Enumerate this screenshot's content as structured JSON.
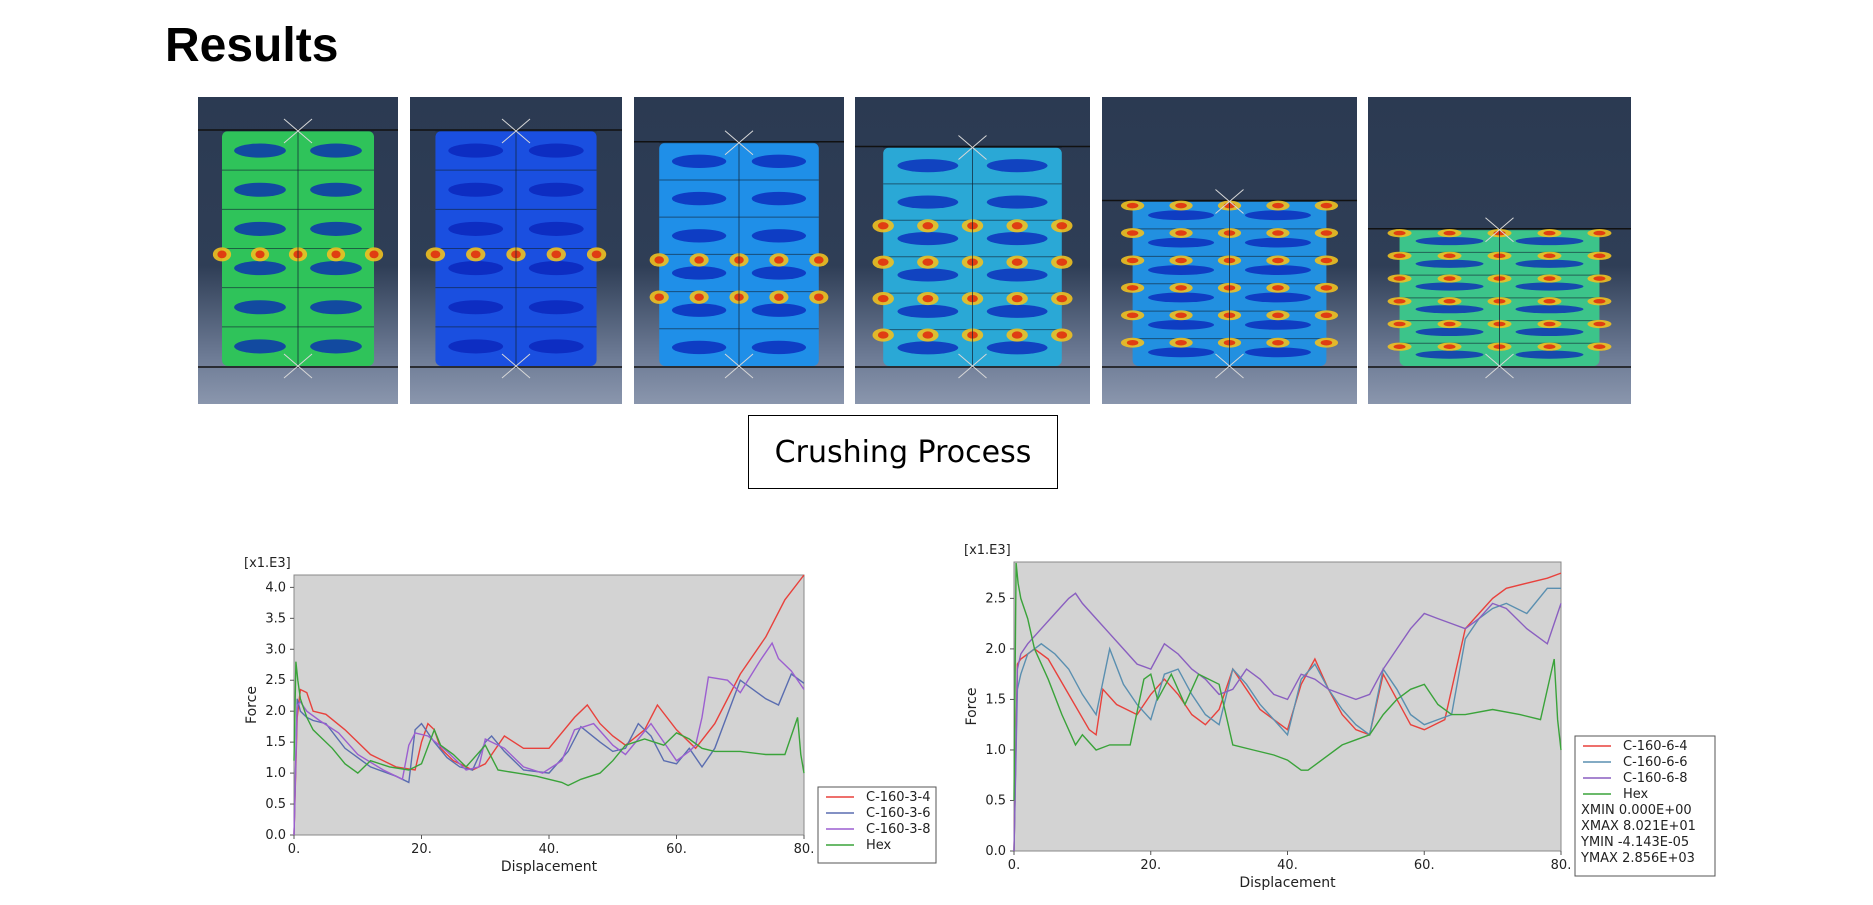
{
  "title": "Results",
  "caption": "Crushing Process",
  "fea_images": [
    {
      "stage": 1,
      "compression": 0.0,
      "band_rows": [
        3
      ]
    },
    {
      "stage": 2,
      "compression": 0.0,
      "band_rows": [
        3
      ]
    },
    {
      "stage": 3,
      "compression": 0.05,
      "band_rows": [
        3,
        4
      ]
    },
    {
      "stage": 4,
      "compression": 0.07,
      "band_rows": [
        2,
        3,
        4,
        5
      ]
    },
    {
      "stage": 5,
      "compression": 0.3,
      "band_rows": [
        0,
        1,
        2,
        3,
        4,
        5
      ]
    },
    {
      "stage": 6,
      "compression": 0.42,
      "band_rows": [
        0,
        1,
        2,
        3,
        4,
        5
      ]
    }
  ],
  "chart_data": [
    {
      "type": "line",
      "xlabel": "Displacement",
      "ylabel": "Force",
      "yscale_label": "[x1.E3]",
      "xlim": [
        0,
        80
      ],
      "ylim": [
        0,
        4.2
      ],
      "xticks": [
        "0.",
        "20.",
        "40.",
        "60.",
        "80."
      ],
      "yticks": [
        "0.0",
        "0.5",
        "1.0",
        "1.5",
        "2.0",
        "2.5",
        "3.0",
        "3.5",
        "4.0"
      ],
      "grid": false,
      "legend_position": "bottom-right-outside",
      "legend": [
        "C-160-3-4",
        "C-160-3-6",
        "C-160-3-8",
        "Hex"
      ],
      "colors": {
        "C-160-3-4": "#e8413c",
        "C-160-3-6": "#5a6db0",
        "C-160-3-8": "#9c5fd0",
        "Hex": "#3aa33a"
      },
      "series": [
        {
          "name": "C-160-3-4",
          "x": [
            0,
            0.5,
            1,
            2,
            3,
            5,
            8,
            12,
            16,
            19,
            20,
            21,
            22,
            23,
            25,
            28,
            30,
            33,
            36,
            40,
            44,
            46,
            48,
            50,
            52,
            55,
            57,
            60,
            63,
            66,
            70,
            74,
            77,
            80
          ],
          "y": [
            0,
            1.9,
            2.35,
            2.3,
            2.0,
            1.95,
            1.7,
            1.3,
            1.1,
            1.05,
            1.5,
            1.8,
            1.7,
            1.4,
            1.2,
            1.05,
            1.15,
            1.6,
            1.4,
            1.4,
            1.9,
            2.1,
            1.8,
            1.6,
            1.45,
            1.7,
            2.1,
            1.7,
            1.4,
            1.8,
            2.6,
            3.2,
            3.8,
            4.2
          ]
        },
        {
          "name": "C-160-3-6",
          "x": [
            0,
            0.5,
            1,
            2,
            3,
            5,
            8,
            12,
            16,
            18,
            19,
            20,
            22,
            24,
            26,
            28,
            30,
            31,
            33,
            36,
            40,
            43,
            45,
            48,
            50,
            52,
            54,
            56,
            58,
            60,
            62,
            64,
            66,
            70,
            74,
            76,
            78,
            80
          ],
          "y": [
            0,
            2.2,
            2.0,
            1.9,
            1.85,
            1.8,
            1.4,
            1.1,
            0.95,
            0.85,
            1.7,
            1.8,
            1.5,
            1.25,
            1.1,
            1.05,
            1.5,
            1.6,
            1.35,
            1.05,
            1.0,
            1.35,
            1.75,
            1.5,
            1.35,
            1.4,
            1.8,
            1.6,
            1.2,
            1.15,
            1.4,
            1.1,
            1.4,
            2.5,
            2.2,
            2.1,
            2.6,
            2.45
          ]
        },
        {
          "name": "C-160-3-8",
          "x": [
            0,
            0.5,
            1,
            2,
            4,
            7,
            10,
            14,
            17,
            18,
            19,
            21,
            24,
            27,
            29,
            30,
            33,
            36,
            39,
            42,
            44,
            47,
            50,
            52,
            54,
            56,
            58,
            60,
            62,
            63,
            64,
            65,
            68,
            70,
            73,
            75,
            76,
            78,
            80
          ],
          "y": [
            0,
            2.1,
            2.15,
            2.0,
            1.85,
            1.65,
            1.3,
            1.05,
            0.9,
            1.45,
            1.65,
            1.6,
            1.35,
            1.05,
            1.1,
            1.55,
            1.4,
            1.1,
            1.0,
            1.2,
            1.7,
            1.8,
            1.45,
            1.3,
            1.55,
            1.8,
            1.5,
            1.2,
            1.35,
            1.45,
            1.9,
            2.55,
            2.5,
            2.3,
            2.8,
            3.1,
            2.85,
            2.65,
            2.35
          ]
        },
        {
          "name": "Hex",
          "x": [
            0,
            0.3,
            0.6,
            1,
            2,
            3,
            4,
            6,
            8,
            10,
            12,
            15,
            18,
            20,
            22,
            23,
            25,
            27,
            30,
            32,
            35,
            38,
            40,
            42,
            43,
            45,
            48,
            50,
            52,
            55,
            58,
            60,
            62,
            64,
            66,
            70,
            74,
            77,
            79,
            79.5,
            80
          ],
          "y": [
            1.2,
            2.8,
            2.5,
            2.2,
            1.9,
            1.7,
            1.6,
            1.4,
            1.15,
            1.0,
            1.2,
            1.1,
            1.05,
            1.15,
            1.7,
            1.45,
            1.3,
            1.1,
            1.45,
            1.05,
            1.0,
            0.95,
            0.9,
            0.85,
            0.8,
            0.9,
            1.0,
            1.2,
            1.45,
            1.55,
            1.45,
            1.65,
            1.55,
            1.4,
            1.35,
            1.35,
            1.3,
            1.3,
            1.9,
            1.3,
            1.0
          ]
        }
      ]
    },
    {
      "type": "line",
      "xlabel": "Displacement",
      "ylabel": "Force",
      "yscale_label": "[x1.E3]",
      "xlim": [
        0,
        80
      ],
      "ylim": [
        0,
        2.86
      ],
      "xticks": [
        "0.",
        "20.",
        "40.",
        "60.",
        "80."
      ],
      "yticks": [
        "0.0",
        "0.5",
        "1.0",
        "1.5",
        "2.0",
        "2.5"
      ],
      "grid": false,
      "legend_position": "bottom-right-outside",
      "legend": [
        "C-160-6-4",
        "C-160-6-6",
        "C-160-6-8",
        "Hex"
      ],
      "legend_extra": [
        "XMIN   0.000E+00",
        "XMAX   8.021E+01",
        "YMIN  -4.143E-05",
        "YMAX   2.856E+03"
      ],
      "colors": {
        "C-160-6-4": "#e8413c",
        "C-160-6-6": "#5a8fb0",
        "C-160-6-8": "#8a5fc0",
        "Hex": "#3aa33a"
      },
      "series": [
        {
          "name": "C-160-6-4",
          "x": [
            0,
            0.5,
            1,
            2,
            3,
            5,
            8,
            11,
            12,
            13,
            15,
            18,
            20,
            22,
            24,
            26,
            28,
            30,
            32,
            34,
            36,
            40,
            42,
            44,
            46,
            48,
            50,
            52,
            54,
            56,
            58,
            60,
            63,
            66,
            68,
            70,
            72,
            75,
            78,
            80
          ],
          "y": [
            0,
            1.85,
            1.9,
            1.95,
            2.0,
            1.9,
            1.55,
            1.2,
            1.15,
            1.6,
            1.45,
            1.35,
            1.55,
            1.7,
            1.55,
            1.35,
            1.25,
            1.4,
            1.8,
            1.6,
            1.4,
            1.2,
            1.65,
            1.9,
            1.6,
            1.35,
            1.2,
            1.15,
            1.75,
            1.5,
            1.25,
            1.2,
            1.3,
            2.2,
            2.35,
            2.5,
            2.6,
            2.65,
            2.7,
            2.75
          ]
        },
        {
          "name": "C-160-6-6",
          "x": [
            0,
            0.5,
            1,
            2,
            4,
            6,
            8,
            10,
            12,
            14,
            16,
            18,
            20,
            22,
            24,
            26,
            28,
            30,
            32,
            34,
            36,
            38,
            40,
            42,
            44,
            46,
            48,
            50,
            52,
            54,
            56,
            58,
            60,
            62,
            64,
            66,
            68,
            70,
            72,
            75,
            78,
            80
          ],
          "y": [
            0,
            1.6,
            1.75,
            1.95,
            2.05,
            1.95,
            1.8,
            1.55,
            1.35,
            2.0,
            1.65,
            1.45,
            1.3,
            1.75,
            1.8,
            1.55,
            1.35,
            1.25,
            1.8,
            1.65,
            1.45,
            1.3,
            1.15,
            1.7,
            1.85,
            1.6,
            1.4,
            1.25,
            1.15,
            1.8,
            1.6,
            1.35,
            1.25,
            1.3,
            1.35,
            2.1,
            2.3,
            2.4,
            2.45,
            2.35,
            2.6,
            2.6
          ]
        },
        {
          "name": "C-160-6-8",
          "x": [
            0,
            0.5,
            1,
            2,
            4,
            6,
            8,
            9,
            10,
            12,
            14,
            16,
            18,
            20,
            22,
            24,
            26,
            28,
            30,
            32,
            34,
            36,
            38,
            40,
            42,
            44,
            46,
            48,
            50,
            52,
            54,
            56,
            58,
            60,
            62,
            64,
            66,
            68,
            70,
            72,
            75,
            78,
            80
          ],
          "y": [
            0,
            1.8,
            1.95,
            2.05,
            2.2,
            2.35,
            2.5,
            2.55,
            2.45,
            2.3,
            2.15,
            2.0,
            1.85,
            1.8,
            2.05,
            1.95,
            1.8,
            1.7,
            1.55,
            1.6,
            1.8,
            1.7,
            1.55,
            1.5,
            1.75,
            1.7,
            1.6,
            1.55,
            1.5,
            1.55,
            1.8,
            2.0,
            2.2,
            2.35,
            2.3,
            2.25,
            2.2,
            2.3,
            2.45,
            2.4,
            2.2,
            2.05,
            2.45
          ]
        },
        {
          "name": "Hex",
          "x": [
            0,
            0.3,
            0.6,
            1,
            2,
            3,
            5,
            7,
            9,
            10,
            12,
            14,
            17,
            19,
            20,
            21,
            23,
            25,
            27,
            30,
            32,
            35,
            38,
            40,
            42,
            43,
            45,
            48,
            50,
            52,
            54,
            56,
            58,
            60,
            62,
            64,
            66,
            70,
            74,
            77,
            79,
            79.5,
            80
          ],
          "y": [
            0.5,
            2.85,
            2.65,
            2.5,
            2.3,
            2.0,
            1.7,
            1.35,
            1.05,
            1.15,
            1.0,
            1.05,
            1.05,
            1.7,
            1.75,
            1.5,
            1.75,
            1.45,
            1.75,
            1.65,
            1.05,
            1.0,
            0.95,
            0.9,
            0.8,
            0.8,
            0.9,
            1.05,
            1.1,
            1.15,
            1.35,
            1.5,
            1.6,
            1.65,
            1.45,
            1.35,
            1.35,
            1.4,
            1.35,
            1.3,
            1.9,
            1.3,
            1.0
          ]
        }
      ]
    }
  ]
}
